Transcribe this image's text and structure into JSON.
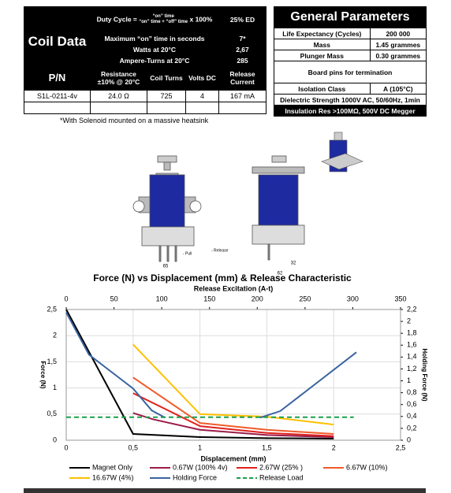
{
  "coil_data": {
    "duty_cycle_label": "Duty Cycle =",
    "duty_numerator": "“on” time",
    "duty_denominator": "“on” time + “off” time",
    "duty_multiplier": "x 100%",
    "duty_value": "25% ED",
    "title": "Coil Data",
    "rows": [
      [
        "Maximum “on” time in seconds",
        "7*"
      ],
      [
        "Watts at 20°C",
        "2,67"
      ],
      [
        "Ampere-Turns at 20°C",
        "285"
      ]
    ],
    "headers": [
      "P/N",
      "Resistance ±10% @ 20°C",
      "Coil Turns",
      "Volts DC",
      "Release Current"
    ],
    "part": [
      "S1L-0211-4v",
      "24.0 Ω",
      "725",
      "4",
      "167 mA"
    ],
    "note": "*With Solenoid mounted on a massive heatsink"
  },
  "general_parameters": {
    "title": "General Parameters",
    "rows": [
      [
        "Life Expectancy (Cycles)",
        "200 000"
      ],
      [
        "Mass",
        "1.45 grammes"
      ],
      [
        "Plunger Mass",
        "0.30 grammes"
      ]
    ],
    "board_pins": "Board pins for termination",
    "isolation": [
      "Isolation Class",
      "A (105°C)"
    ],
    "dielectric": "Dielectric Strength 1000V AC, 50/60Hz, 1min",
    "insulation": "Insulation Res >100MΩ, 500V DC Megger"
  },
  "drawing": {
    "labels": [
      "65",
      "62",
      "32",
      "- Pull",
      "- Release"
    ]
  },
  "chart_data": {
    "type": "line",
    "title": "Force (N) vs Displacement (mm) & Release Characteristic",
    "x_label": "Displacement (mm)",
    "x2_label": "Release Excitation (A-t)",
    "y_label": "Force (N)",
    "y2_label": "Holding Force (N)",
    "xlim": [
      0,
      2.5
    ],
    "xticks": [
      0,
      {
        "value": 0.5,
        "label": "0,5"
      },
      1,
      {
        "value": 1.5,
        "label": "1,5"
      },
      2,
      {
        "value": 2.5,
        "label": "2,5"
      }
    ],
    "x2lim": [
      0,
      350
    ],
    "x2ticks": [
      0,
      50,
      100,
      150,
      200,
      250,
      300,
      350
    ],
    "ylim": [
      0,
      2.5
    ],
    "yticks": [
      0,
      {
        "value": 0.5,
        "label": "0,5"
      },
      1,
      {
        "value": 1.5,
        "label": "1,5"
      },
      2,
      {
        "value": 2.5,
        "label": "2,5"
      }
    ],
    "y2lim": [
      0,
      2.2
    ],
    "y2ticks": [
      0,
      {
        "value": 0.2,
        "label": "0,2"
      },
      {
        "value": 0.4,
        "label": "0,4"
      },
      {
        "value": 0.6,
        "label": "0,6"
      },
      {
        "value": 0.8,
        "label": "0,8"
      },
      1,
      {
        "value": 1.2,
        "label": "1,2"
      },
      {
        "value": 1.4,
        "label": "1,4"
      },
      {
        "value": 1.6,
        "label": "1,6"
      },
      {
        "value": 1.8,
        "label": "1,8"
      },
      2,
      {
        "value": 2.2,
        "label": "2,2"
      }
    ],
    "grid": true,
    "series": [
      {
        "name": "Magnet Only",
        "color": "#000000",
        "x": [
          0,
          0.5,
          1,
          1.5,
          2
        ],
        "values": [
          2.5,
          0.12,
          0.06,
          0.04,
          0.03
        ]
      },
      {
        "name": "0.67W (100% 4v)",
        "color": "#9b1b4a",
        "x": [
          0.5,
          0.65,
          1,
          1.5,
          2
        ],
        "values": [
          0.52,
          0.4,
          0.2,
          0.1,
          0.06
        ]
      },
      {
        "name": "2.67W (25% )",
        "color": "#e0201b",
        "x": [
          0.5,
          1,
          1.5,
          2
        ],
        "values": [
          0.9,
          0.27,
          0.14,
          0.08
        ]
      },
      {
        "name": "6.67W (10%)",
        "color": "#f05a28",
        "x": [
          0.5,
          1,
          1.5,
          2
        ],
        "values": [
          1.2,
          0.33,
          0.2,
          0.12
        ]
      },
      {
        "name": "16.67W (4%)",
        "color": "#ffc000",
        "x": [
          0.5,
          1,
          1.5,
          2
        ],
        "values": [
          1.83,
          0.5,
          0.45,
          0.3
        ]
      },
      {
        "name": "Holding Force",
        "color": "#3a64a0",
        "axis": "y2",
        "x": [
          0,
          0.17,
          0.5,
          0.64,
          0.74,
          1.1,
          1.45,
          1.6,
          2.17
        ],
        "values": [
          2.15,
          1.44,
          0.87,
          0.5,
          0.38,
          null,
          0.38,
          0.49,
          1.48
        ]
      },
      {
        "name": "Release Load",
        "color": "#1aa04a",
        "dashed": true,
        "x": [
          0,
          2.15
        ],
        "values": [
          0.44,
          0.44
        ]
      }
    ]
  }
}
